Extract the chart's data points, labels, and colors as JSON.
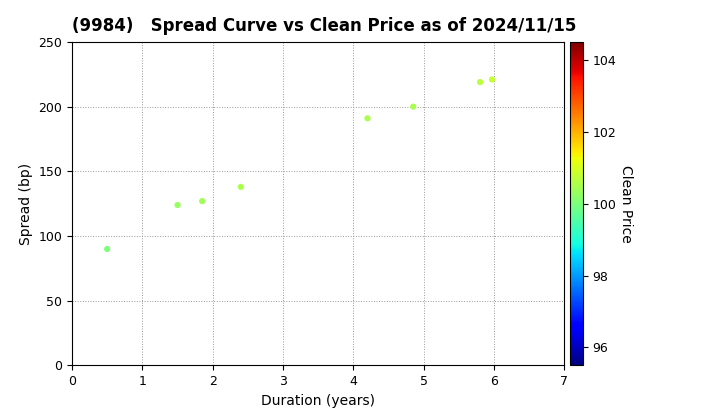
{
  "title": "(9984)   Spread Curve vs Clean Price as of 2024/11/15",
  "xlabel": "Duration (years)",
  "ylabel": "Spread (bp)",
  "colorbar_label": "Clean Price",
  "points": [
    {
      "duration": 0.5,
      "spread": 90,
      "clean_price": 100.0
    },
    {
      "duration": 1.5,
      "spread": 124,
      "clean_price": 100.3
    },
    {
      "duration": 1.85,
      "spread": 127,
      "clean_price": 100.4
    },
    {
      "duration": 2.4,
      "spread": 138,
      "clean_price": 100.5
    },
    {
      "duration": 4.2,
      "spread": 191,
      "clean_price": 100.5
    },
    {
      "duration": 4.85,
      "spread": 200,
      "clean_price": 100.5
    },
    {
      "duration": 5.8,
      "spread": 219,
      "clean_price": 100.7
    },
    {
      "duration": 5.97,
      "spread": 221,
      "clean_price": 100.8
    }
  ],
  "xlim": [
    0,
    7
  ],
  "ylim": [
    0,
    250
  ],
  "xticks": [
    0,
    1,
    2,
    3,
    4,
    5,
    6,
    7
  ],
  "yticks": [
    0,
    50,
    100,
    150,
    200,
    250
  ],
  "colorbar_min": 95.5,
  "colorbar_max": 104.5,
  "colorbar_ticks": [
    96,
    98,
    100,
    102,
    104
  ],
  "marker_size": 20,
  "background_color": "#ffffff",
  "grid_color": "#999999",
  "title_fontsize": 12,
  "label_fontsize": 10,
  "tick_fontsize": 9
}
